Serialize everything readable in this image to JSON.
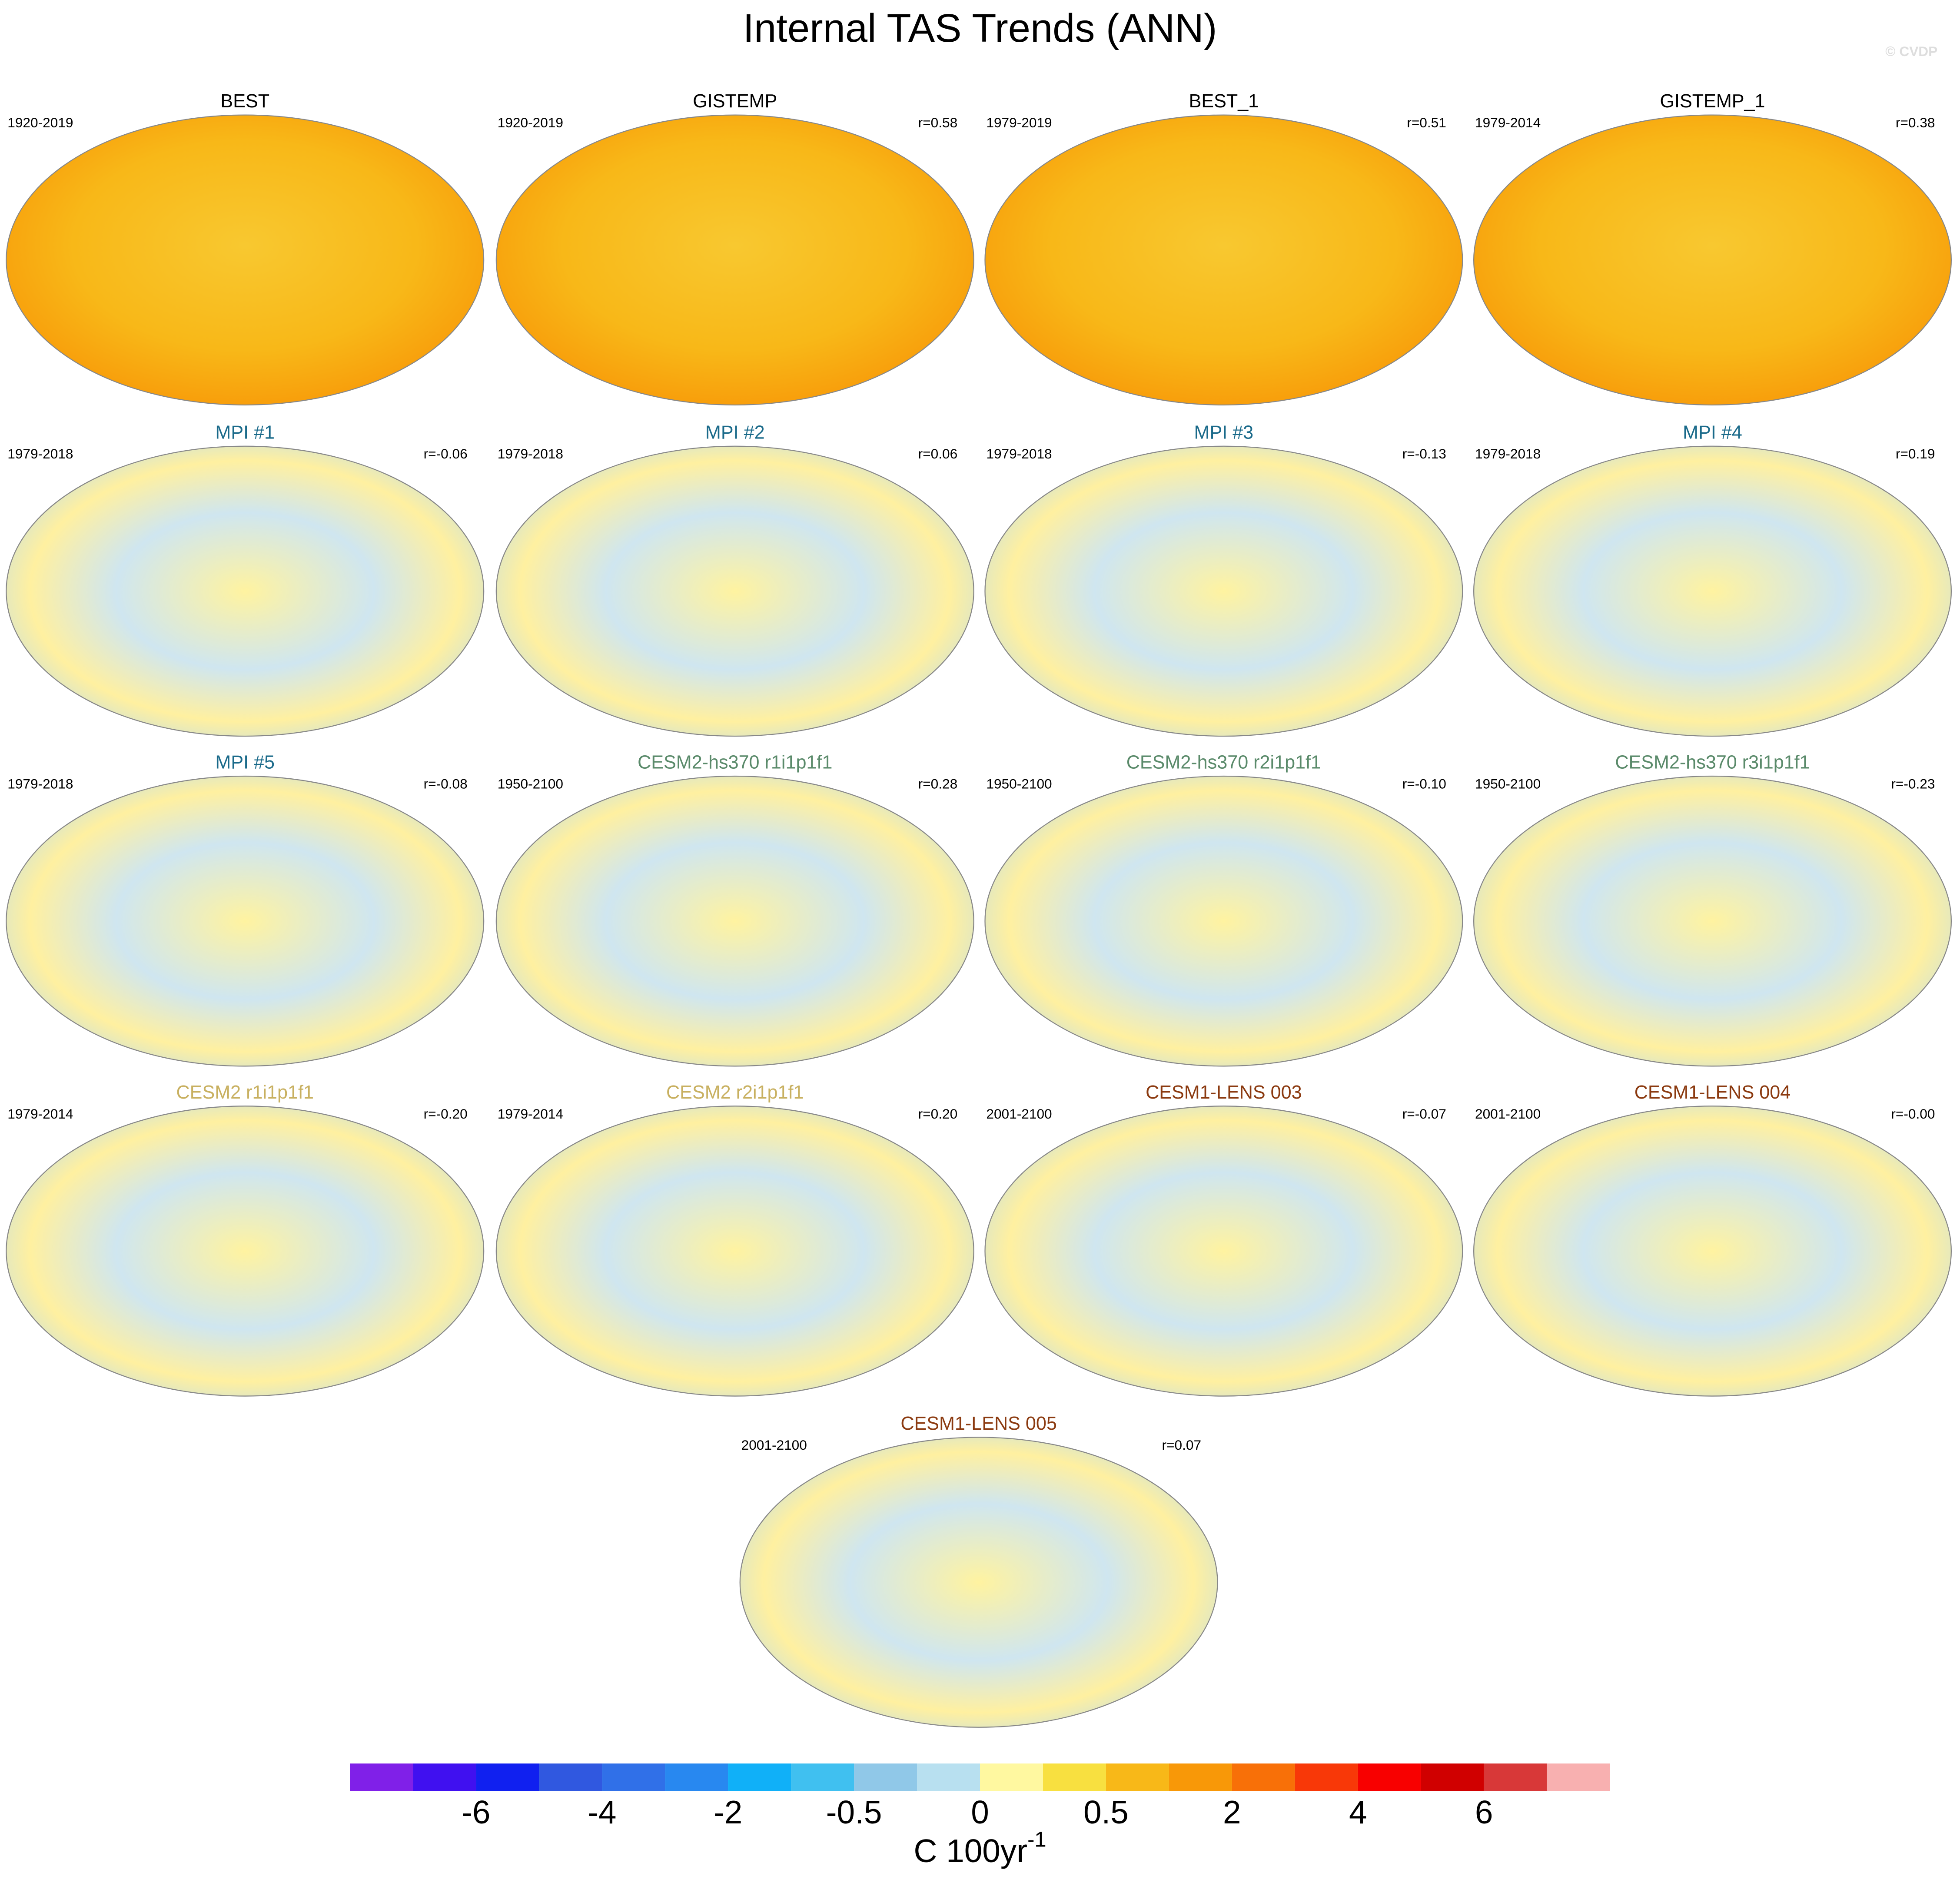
{
  "title": "Internal TAS Trends (ANN)",
  "copyright": "© CVDP",
  "panels": [
    {
      "title": "BEST",
      "title_color": "#000000",
      "period": "1920-2019",
      "r": null
    },
    {
      "title": "GISTEMP",
      "title_color": "#000000",
      "period": "1920-2019",
      "r": "r=0.58"
    },
    {
      "title": "BEST_1",
      "title_color": "#000000",
      "period": "1979-2019",
      "r": "r=0.51"
    },
    {
      "title": "GISTEMP_1",
      "title_color": "#000000",
      "period": "1979-2014",
      "r": "r=0.38"
    },
    {
      "title": "MPI #1",
      "title_color": "#1a6a8a",
      "period": "1979-2018",
      "r": "r=-0.06"
    },
    {
      "title": "MPI #2",
      "title_color": "#1a6a8a",
      "period": "1979-2018",
      "r": "r=0.06"
    },
    {
      "title": "MPI #3",
      "title_color": "#1a6a8a",
      "period": "1979-2018",
      "r": "r=-0.13"
    },
    {
      "title": "MPI #4",
      "title_color": "#1a6a8a",
      "period": "1979-2018",
      "r": "r=0.19"
    },
    {
      "title": "MPI #5",
      "title_color": "#1a6a8a",
      "period": "1979-2018",
      "r": "r=-0.08"
    },
    {
      "title": "CESM2-hs370 r1i1p1f1",
      "title_color": "#5a8a6a",
      "period": "1950-2100",
      "r": "r=0.28"
    },
    {
      "title": "CESM2-hs370 r2i1p1f1",
      "title_color": "#5a8a6a",
      "period": "1950-2100",
      "r": "r=-0.10"
    },
    {
      "title": "CESM2-hs370 r3i1p1f1",
      "title_color": "#5a8a6a",
      "period": "1950-2100",
      "r": "r=-0.23"
    },
    {
      "title": "CESM2 r1i1p1f1",
      "title_color": "#c8b060",
      "period": "1979-2014",
      "r": "r=-0.20"
    },
    {
      "title": "CESM2 r2i1p1f1",
      "title_color": "#c8b060",
      "period": "1979-2014",
      "r": "r=0.20"
    },
    {
      "title": "CESM1-LENS 003",
      "title_color": "#8b3a10",
      "period": "2001-2100",
      "r": "r=-0.07"
    },
    {
      "title": "CESM1-LENS 004",
      "title_color": "#8b3a10",
      "period": "2001-2100",
      "r": "r=-0.00"
    },
    {
      "title": "CESM1-LENS 005",
      "title_color": "#8b3a10",
      "period": "2001-2100",
      "r": "r=0.07"
    }
  ],
  "colorbar": {
    "colors": [
      "#8020e8",
      "#4010f0",
      "#1020f0",
      "#3058e0",
      "#3070e8",
      "#2888f0",
      "#10b0f8",
      "#40c0f0",
      "#90c8e8",
      "#b8e0f0",
      "#fff8a0",
      "#f8e040",
      "#f8b818",
      "#f89808",
      "#f87008",
      "#f83808",
      "#f80000",
      "#d00000",
      "#d83838",
      "#f8b0b0"
    ],
    "ticks": [
      -6,
      -4,
      -2,
      -0.5,
      0,
      0.5,
      2,
      4,
      6
    ],
    "unit": "C 100yr",
    "unit_exponent": "-1"
  }
}
